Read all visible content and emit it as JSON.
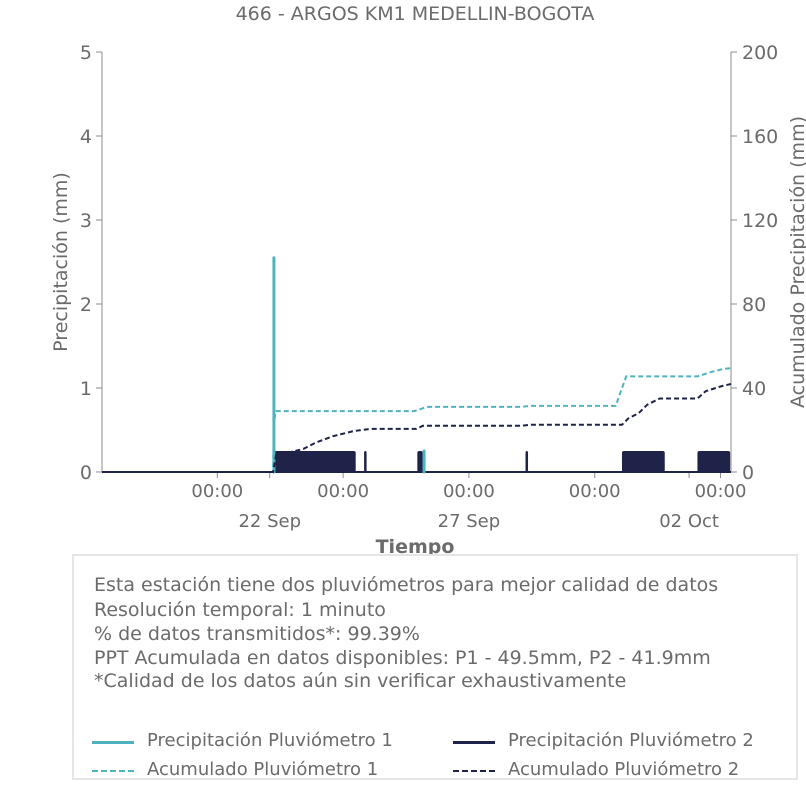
{
  "chart_data": {
    "type": "line",
    "title": "466 - ARGOS KM1 MEDELLIN-BOGOTA",
    "xlabel": "Tiempo",
    "ylabel_left": "Precipitación (mm)",
    "ylabel_right": "Acumulado Precipitación (mm)",
    "ylim_left": [
      0,
      5
    ],
    "ylim_right": [
      0,
      200
    ],
    "yticks_left": [
      "0",
      "1",
      "2",
      "3",
      "4",
      "5"
    ],
    "yticks_right": [
      "0",
      "40",
      "80",
      "120",
      "160",
      "200"
    ],
    "x_range_days": [
      "2023-09-19T06:00",
      "2023-10-04T00:00"
    ],
    "x_ticks": [
      {
        "t": 2.75,
        "line1": "00:00",
        "line2": ""
      },
      {
        "t": 4.0,
        "line1": "",
        "line2": "22 Sep"
      },
      {
        "t": 5.75,
        "line1": "00:00",
        "line2": ""
      },
      {
        "t": 8.75,
        "line1": "00:00",
        "line2": "27 Sep"
      },
      {
        "t": 11.75,
        "line1": "00:00",
        "line2": ""
      },
      {
        "t": 14.0,
        "line1": "",
        "line2": "02 Oct"
      },
      {
        "t": 14.75,
        "line1": "00:00",
        "line2": ""
      }
    ],
    "grid": false,
    "legend_placement": "bottom",
    "series": [
      {
        "name": "Precipitación Pluviómetro 1",
        "color": "#4fb3bf",
        "style": "solid",
        "axis": "left",
        "spikes": [
          {
            "t": 4.1,
            "v": 2.55
          },
          {
            "t": 7.68,
            "v": 0.25
          }
        ]
      },
      {
        "name": "Precipitación Pluviómetro 2",
        "color": "#1f2349",
        "style": "solid",
        "axis": "left",
        "bursts": [
          {
            "start": 4.1,
            "end": 6.05,
            "v": 0.25
          },
          {
            "start": 6.25,
            "end": 6.3,
            "v": 0.25
          },
          {
            "start": 7.52,
            "end": 7.65,
            "v": 0.25
          },
          {
            "start": 10.1,
            "end": 10.14,
            "v": 0.25
          },
          {
            "start": 12.4,
            "end": 13.42,
            "v": 0.25
          },
          {
            "start": 14.2,
            "end": 14.98,
            "v": 0.25
          }
        ]
      },
      {
        "name": "Acumulado Pluviómetro 1",
        "color": "#4fb3bf",
        "style": "dashed",
        "axis": "right",
        "points": [
          [
            0,
            0
          ],
          [
            4.08,
            0
          ],
          [
            4.1,
            24
          ],
          [
            4.15,
            29
          ],
          [
            7.45,
            29
          ],
          [
            7.75,
            31
          ],
          [
            10.0,
            31
          ],
          [
            10.2,
            31.5
          ],
          [
            12.25,
            31.5
          ],
          [
            12.5,
            45.5
          ],
          [
            14.2,
            45.5
          ],
          [
            14.5,
            47.5
          ],
          [
            14.8,
            49
          ],
          [
            15.0,
            49.5
          ]
        ]
      },
      {
        "name": "Acumulado Pluviómetro 2",
        "color": "#1f2349",
        "style": "dashed",
        "axis": "right",
        "points": [
          [
            0,
            0
          ],
          [
            4.08,
            0
          ],
          [
            4.15,
            8
          ],
          [
            4.4,
            9
          ],
          [
            4.8,
            11
          ],
          [
            5.1,
            14
          ],
          [
            5.5,
            17
          ],
          [
            6.0,
            19.5
          ],
          [
            6.4,
            20.5
          ],
          [
            7.5,
            20.5
          ],
          [
            7.65,
            22
          ],
          [
            10.0,
            22
          ],
          [
            10.2,
            22.5
          ],
          [
            12.4,
            22.5
          ],
          [
            12.55,
            25.5
          ],
          [
            12.8,
            28
          ],
          [
            13.0,
            32
          ],
          [
            13.3,
            35
          ],
          [
            14.2,
            35
          ],
          [
            14.4,
            38.5
          ],
          [
            14.8,
            41
          ],
          [
            15.0,
            41.9
          ]
        ]
      }
    ]
  },
  "info": {
    "line1": "Esta estación tiene dos pluviómetros para mejor calidad de datos",
    "line2": "Resolución temporal: 1 minuto",
    "line3": "% de datos transmitidos*: 99.39%",
    "line4": "PPT Acumulada en datos disponibles: P1 - 49.5mm, P2 - 41.9mm",
    "line5": "*Calidad de los datos aún sin verificar exhaustivamente"
  },
  "legend": {
    "p1": "Precipitación Pluviómetro 1",
    "p2": "Precipitación Pluviómetro 2",
    "a1": "Acumulado Pluviómetro 1",
    "a2": "Acumulado Pluviómetro 2"
  },
  "colors": {
    "pluvio1": "#4fb3bf",
    "pluvio2": "#1f2349",
    "axis": "#8c8c8c",
    "text": "#6b6b6b"
  }
}
